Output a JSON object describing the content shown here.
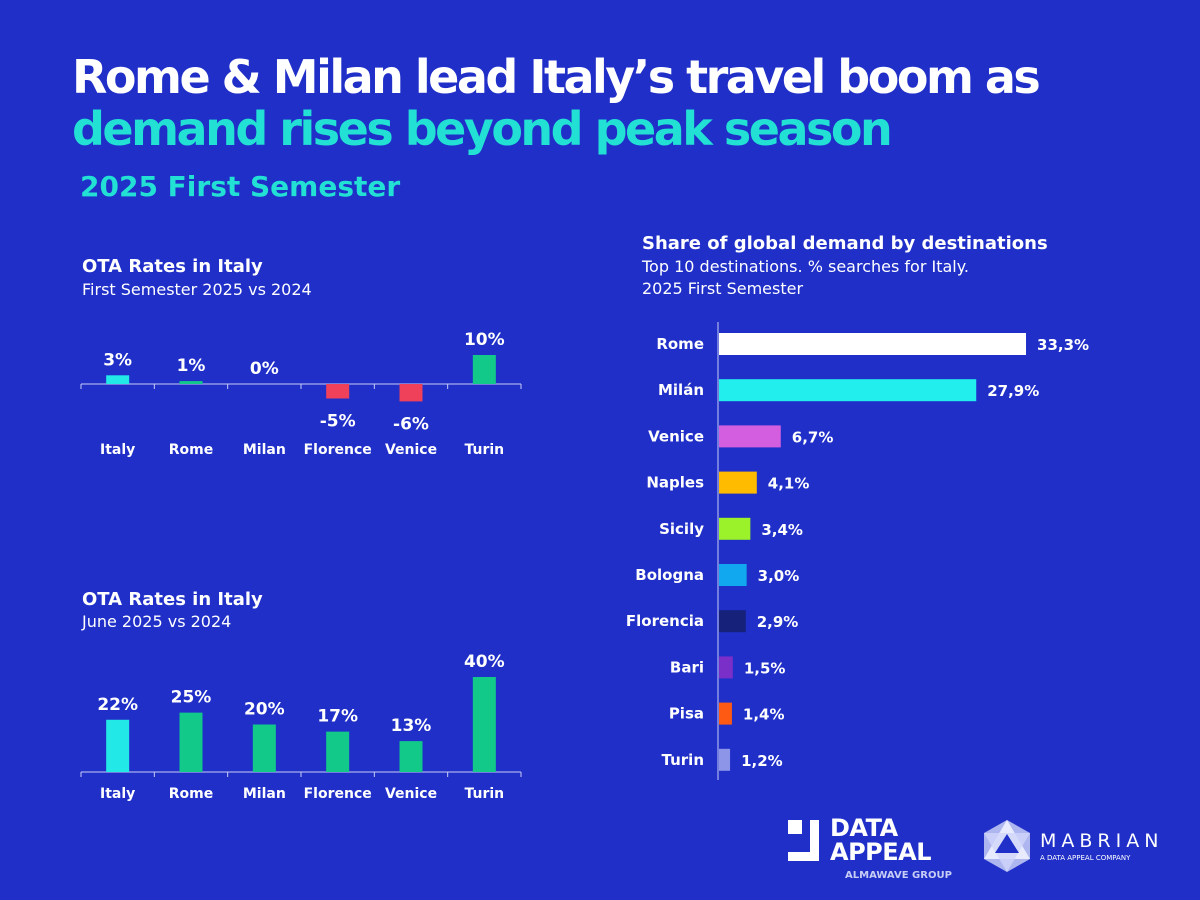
{
  "headline": {
    "line1": "Rome & Milan lead Italy’s travel boom as",
    "line2": "demand rises beyond peak season"
  },
  "subtitle": "2025 First Semester",
  "colors": {
    "background": "#1f2fc8",
    "accent": "#22e0d4",
    "italy": "#22e8e8",
    "positive": "#12c98a",
    "negative": "#f0415a"
  },
  "chart_data": [
    {
      "type": "bar",
      "title": "OTA Rates in Italy",
      "subtitle": "First Semester 2025 vs 2024",
      "categories": [
        "Italy",
        "Rome",
        "Milan",
        "Florence",
        "Venice",
        "Turin"
      ],
      "values": [
        3,
        1,
        0,
        -5,
        -6,
        10
      ],
      "labels": [
        "3%",
        "1%",
        "0%",
        "-5%",
        "-6%",
        "10%"
      ],
      "bar_colors": [
        "#22e8e8",
        "#12c98a",
        "#12c98a",
        "#f0415a",
        "#f0415a",
        "#12c98a"
      ]
    },
    {
      "type": "bar",
      "title": "OTA Rates in Italy",
      "subtitle": "June 2025 vs 2024",
      "categories": [
        "Italy",
        "Rome",
        "Milan",
        "Florence",
        "Venice",
        "Turin"
      ],
      "values": [
        22,
        25,
        20,
        17,
        13,
        40
      ],
      "labels": [
        "22%",
        "25%",
        "20%",
        "17%",
        "13%",
        "40%"
      ],
      "bar_colors": [
        "#22e8e8",
        "#12c98a",
        "#12c98a",
        "#12c98a",
        "#12c98a",
        "#12c98a"
      ]
    },
    {
      "type": "bar",
      "orientation": "horizontal",
      "title": "Share of global demand by destinations",
      "subtitle": [
        "Top 10 destinations. % searches for Italy.",
        "2025 First Semester"
      ],
      "categories": [
        "Rome",
        "Milán",
        "Venice",
        "Naples",
        "Sicily",
        "Bologna",
        "Florencia",
        "Bari",
        "Pisa",
        "Turin"
      ],
      "values": [
        33.3,
        27.9,
        6.7,
        4.1,
        3.4,
        3.0,
        2.9,
        1.5,
        1.4,
        1.2
      ],
      "labels": [
        "33,3%",
        "27,9%",
        "6,7%",
        "4,1%",
        "3,4%",
        "3,0%",
        "2,9%",
        "1,5%",
        "1,4%",
        "1,2%"
      ],
      "bar_colors": [
        "#ffffff",
        "#22eeee",
        "#d35fe0",
        "#ffbb00",
        "#9bf22a",
        "#12a8f0",
        "#16217a",
        "#7a2fc8",
        "#ff5a14",
        "#8c95e8"
      ]
    }
  ],
  "logos": {
    "data_appeal": {
      "line1": "DATA",
      "line2": "APPEAL",
      "tag": "ALMAWAVE GROUP"
    },
    "mabrian": {
      "name": "MABRIAN",
      "tag": "A DATA APPEAL COMPANY"
    }
  }
}
